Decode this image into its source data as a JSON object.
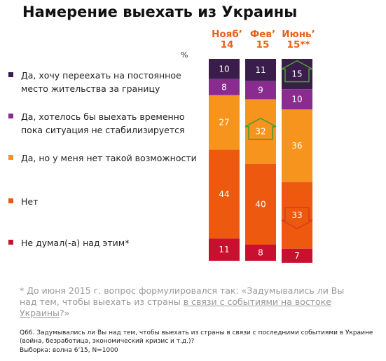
{
  "title": "Намерение выехать из Украины",
  "unit_label": "%",
  "footnote": {
    "text_before": "* До июня 2015 г. вопрос формулировался так: «Задумывались ли Вы над тем, чтобы выехать из страны ",
    "text_underlined": "в связи с событиями на востоке Украины",
    "text_after": "?»"
  },
  "question_text": "Q66. Задумывались ли Вы над тем, чтобы выехать из страны в связи с последними событиями в Украине (война, безработица, экономический кризис и т.д.)?",
  "sample_text": "Выборка: волна 6’15, N=1000",
  "chart_data": {
    "type": "bar",
    "stacked": true,
    "unit": "%",
    "categories": [
      {
        "line1": "Нояб’",
        "line2": "14"
      },
      {
        "line1": "Фев’",
        "line2": "15"
      },
      {
        "line1": "Июнь’",
        "line2": "15**"
      }
    ],
    "series": [
      {
        "name": "Да, хочу переехать на постоянное место жительства за границу",
        "color": "#3a1d4a",
        "label_color": "#ffffff",
        "values": [
          10,
          11,
          15
        ]
      },
      {
        "name": "Да, хотелось бы выехать временно пока ситуация не стабилизируется",
        "color": "#8a2b8f",
        "label_color": "#ffffff",
        "values": [
          8,
          9,
          10
        ]
      },
      {
        "name": "Да, но у меня нет такой возможности",
        "color": "#f7941d",
        "label_color": "#ffffff",
        "values": [
          27,
          32,
          36
        ]
      },
      {
        "name": "Нет",
        "color": "#ed5a0f",
        "label_color": "#ffffff",
        "values": [
          44,
          40,
          33
        ]
      },
      {
        "name": "Не думал(-а) над этим*",
        "color": "#c9102e",
        "label_color": "#ffffff",
        "values": [
          11,
          8,
          7
        ]
      }
    ],
    "change_markers": [
      {
        "series": 0,
        "category": 2,
        "direction": "up",
        "color": "#4a9a3a"
      },
      {
        "series": 2,
        "category": 1,
        "direction": "up",
        "color": "#4a9a3a"
      },
      {
        "series": 3,
        "category": 2,
        "direction": "down",
        "color": "#e03a1a"
      }
    ]
  }
}
